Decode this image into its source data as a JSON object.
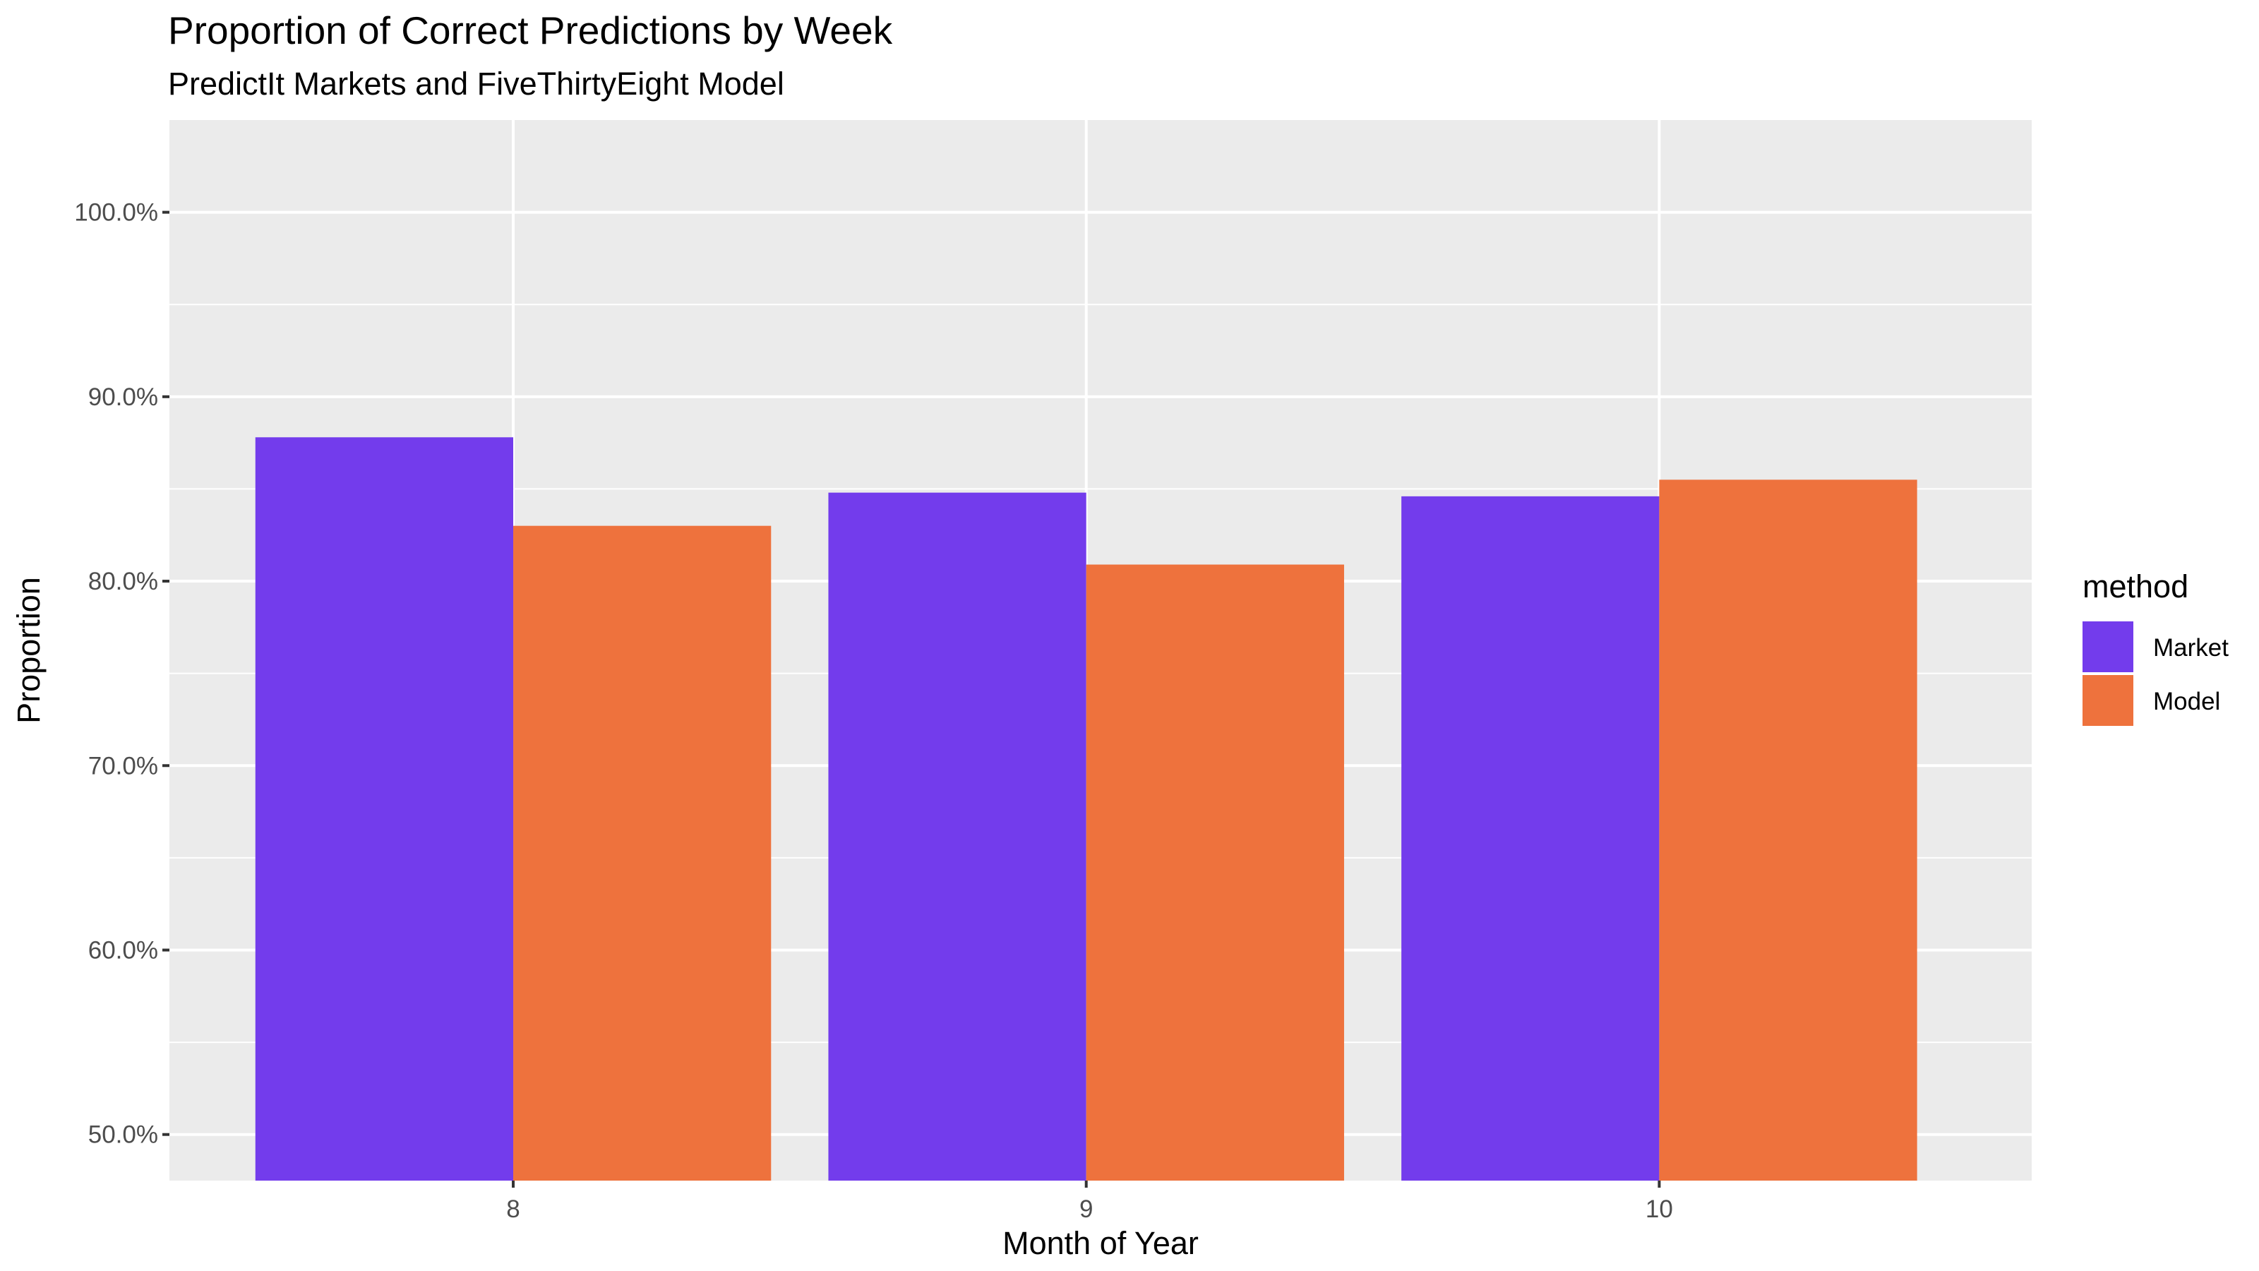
{
  "chart_data": {
    "type": "bar",
    "title": "Proportion of Correct Predictions by Week",
    "subtitle": "PredictIt Markets and FiveThirtyEight Model",
    "xlabel": "Month of Year",
    "ylabel": "Proportion",
    "categories": [
      "8",
      "9",
      "10"
    ],
    "series": [
      {
        "name": "Market",
        "color": "#733CEC",
        "values": [
          0.878,
          0.848,
          0.846
        ]
      },
      {
        "name": "Model",
        "color": "#EE723D",
        "values": [
          0.83,
          0.809,
          0.855
        ]
      }
    ],
    "yticks": [
      0.5,
      0.6,
      0.7,
      0.8,
      0.9,
      1.0
    ],
    "ytick_labels": [
      "50.0%",
      "60.0%",
      "70.0%",
      "80.0%",
      "90.0%",
      "100.0%"
    ],
    "ylim": [
      0.475,
      1.05
    ],
    "grid": true,
    "panel_background": "#EBEBEB",
    "legend": {
      "title": "method",
      "position": "right"
    }
  }
}
